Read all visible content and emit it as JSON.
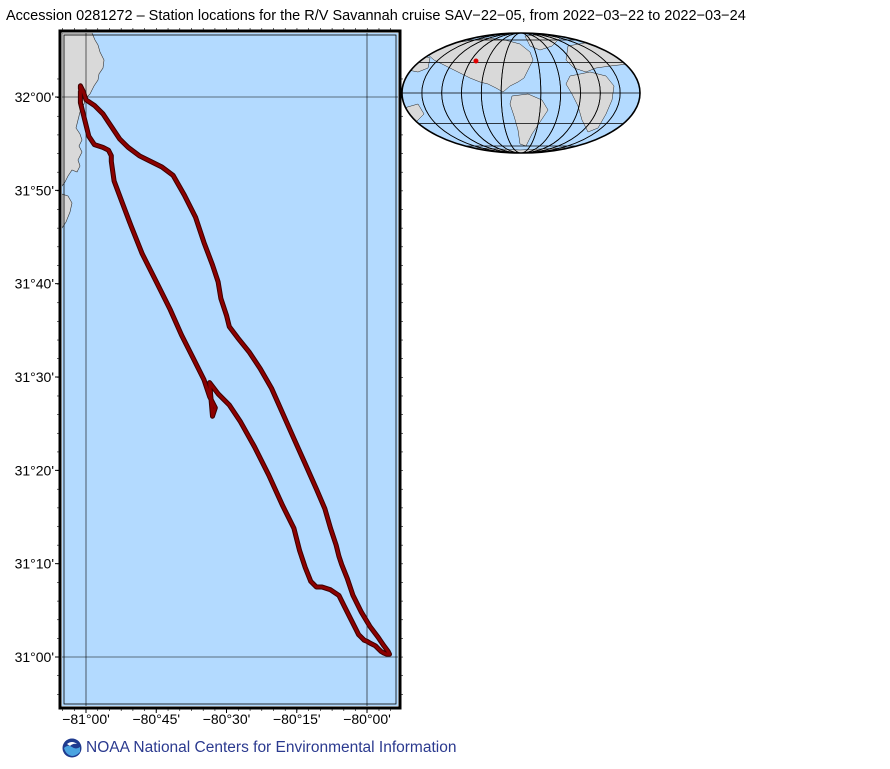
{
  "title": "Accession 0281272 – Station locations for the R/V Savannah cruise SAV−22−05, from 2022−03−22 to 2022−03−24",
  "footer": {
    "text": "NOAA National Centers for Environmental Information",
    "logo_icon": "noaa-logo-icon"
  },
  "colors": {
    "ocean": "#b3daff",
    "land": "#d9d9d9",
    "track": "#8b0000",
    "track_edge": "#3a0000",
    "grid": "#000000",
    "inset_marker": "#e00000"
  },
  "chart_data": {
    "type": "map",
    "projection": "Mercator",
    "xlim": [
      -81.1667,
      -79.9
    ],
    "ylim": [
      30.9167,
      32.0667
    ],
    "grid": true,
    "x_ticks": [
      {
        "value": -81.0,
        "label": "−81°00'"
      },
      {
        "value": -80.75,
        "label": "−80°45'"
      },
      {
        "value": -80.5,
        "label": "−80°30'"
      },
      {
        "value": -80.25,
        "label": "−80°15'"
      },
      {
        "value": -80.0,
        "label": "−80°00'"
      }
    ],
    "y_ticks": [
      {
        "value": 32.0,
        "label": "32°00'"
      },
      {
        "value": 31.8333,
        "label": "31°50'"
      },
      {
        "value": 31.6667,
        "label": "31°40'"
      },
      {
        "value": 31.5,
        "label": "31°30'"
      },
      {
        "value": 31.3333,
        "label": "31°20'"
      },
      {
        "value": 31.1667,
        "label": "31°10'"
      },
      {
        "value": 31.0,
        "label": "31°00'"
      }
    ],
    "gridlines_x": [
      -81.0,
      -80.0
    ],
    "gridlines_y": [
      32.0,
      31.0
    ],
    "track": {
      "lon": [
        -81.02,
        -81.02,
        -81.01,
        -81.0,
        -80.99,
        -80.97,
        -80.94,
        -80.92,
        -80.91,
        -80.91,
        -80.9,
        -80.87,
        -80.84,
        -80.8,
        -80.75,
        -80.7,
        -80.66,
        -80.62,
        -80.58,
        -80.56,
        -80.54,
        -80.55,
        -80.56,
        -80.53,
        -80.49,
        -80.45,
        -80.4,
        -80.35,
        -80.3,
        -80.26,
        -80.24,
        -80.22,
        -80.2,
        -80.18,
        -80.16,
        -80.13,
        -80.1,
        -80.08,
        -80.06,
        -80.04,
        -80.03,
        -80.02,
        -80.01,
        -80.0,
        -79.99,
        -79.97,
        -79.96,
        -79.95,
        -79.94,
        -79.93,
        -79.92,
        -79.925,
        -79.94,
        -79.96,
        -79.99,
        -80.02,
        -80.05,
        -80.07,
        -80.09,
        -80.1,
        -80.11,
        -80.13,
        -80.15,
        -80.18,
        -80.22,
        -80.26,
        -80.3,
        -80.34,
        -80.38,
        -80.42,
        -80.46,
        -80.49,
        -80.5,
        -80.52,
        -80.53,
        -80.55,
        -80.58,
        -80.61,
        -80.65,
        -80.69,
        -80.73,
        -80.77,
        -80.81,
        -80.85,
        -80.88,
        -80.9,
        -80.92,
        -80.94,
        -80.97,
        -81.0,
        -81.01,
        -81.02,
        -81.02
      ],
      "lat": [
        32.01,
        31.99,
        31.97,
        31.95,
        31.93,
        31.915,
        31.91,
        31.905,
        31.895,
        31.885,
        31.85,
        31.81,
        31.77,
        31.72,
        31.67,
        31.62,
        31.575,
        31.535,
        31.495,
        31.465,
        31.445,
        31.43,
        31.49,
        31.47,
        31.45,
        31.42,
        31.375,
        31.325,
        31.27,
        31.23,
        31.19,
        31.16,
        31.135,
        31.125,
        31.125,
        31.12,
        31.11,
        31.09,
        31.07,
        31.05,
        31.04,
        31.035,
        31.03,
        31.028,
        31.025,
        31.02,
        31.015,
        31.01,
        31.007,
        31.005,
        31.005,
        31.01,
        31.02,
        31.035,
        31.055,
        31.08,
        31.11,
        31.14,
        31.165,
        31.18,
        31.2,
        31.23,
        31.265,
        31.3,
        31.345,
        31.39,
        31.435,
        31.48,
        31.515,
        31.545,
        31.57,
        31.59,
        31.61,
        31.64,
        31.67,
        31.7,
        31.74,
        31.785,
        31.825,
        31.86,
        31.875,
        31.885,
        31.895,
        31.91,
        31.925,
        31.94,
        31.955,
        31.97,
        31.985,
        31.995,
        32.01,
        32.02,
        32.015
      ]
    },
    "inset": {
      "projection": "Mollweide",
      "extent": "global",
      "marker_lon": -80.5,
      "marker_lat": 31.5
    }
  }
}
